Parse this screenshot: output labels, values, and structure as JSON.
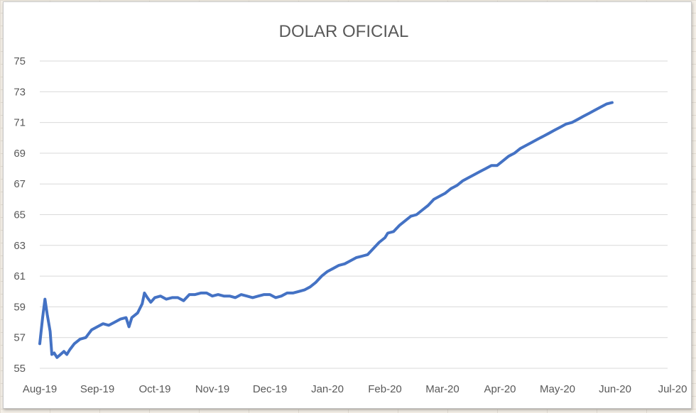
{
  "chart_data": {
    "type": "line",
    "title": "DOLAR OFICIAL",
    "xlabel": "",
    "ylabel": "",
    "ylim": [
      55,
      75
    ],
    "y_ticks": [
      55,
      57,
      59,
      61,
      63,
      65,
      67,
      69,
      71,
      73,
      75
    ],
    "x_tick_labels": [
      "Aug-19",
      "Sep-19",
      "Oct-19",
      "Nov-19",
      "Dec-19",
      "Jan-20",
      "Feb-20",
      "Mar-20",
      "Apr-20",
      "May-20",
      "Jun-20",
      "Jul-20"
    ],
    "grid": true,
    "legend": "none",
    "series": [
      {
        "color": "#4472c4",
        "points": [
          [
            0.0,
            56.6
          ],
          [
            0.05,
            58.3
          ],
          [
            0.09,
            59.5
          ],
          [
            0.13,
            58.5
          ],
          [
            0.18,
            57.4
          ],
          [
            0.21,
            55.9
          ],
          [
            0.25,
            56.0
          ],
          [
            0.3,
            55.7
          ],
          [
            0.36,
            55.9
          ],
          [
            0.42,
            56.1
          ],
          [
            0.47,
            55.9
          ],
          [
            0.52,
            56.2
          ],
          [
            0.6,
            56.6
          ],
          [
            0.7,
            56.9
          ],
          [
            0.8,
            57.0
          ],
          [
            0.9,
            57.5
          ],
          [
            1.0,
            57.7
          ],
          [
            1.1,
            57.9
          ],
          [
            1.2,
            57.8
          ],
          [
            1.3,
            58.0
          ],
          [
            1.4,
            58.2
          ],
          [
            1.5,
            58.3
          ],
          [
            1.55,
            57.7
          ],
          [
            1.6,
            58.3
          ],
          [
            1.7,
            58.6
          ],
          [
            1.78,
            59.2
          ],
          [
            1.82,
            59.9
          ],
          [
            1.87,
            59.6
          ],
          [
            1.93,
            59.3
          ],
          [
            2.0,
            59.6
          ],
          [
            2.1,
            59.7
          ],
          [
            2.2,
            59.5
          ],
          [
            2.3,
            59.6
          ],
          [
            2.4,
            59.6
          ],
          [
            2.5,
            59.4
          ],
          [
            2.6,
            59.8
          ],
          [
            2.7,
            59.8
          ],
          [
            2.8,
            59.9
          ],
          [
            2.9,
            59.9
          ],
          [
            3.0,
            59.7
          ],
          [
            3.1,
            59.8
          ],
          [
            3.2,
            59.7
          ],
          [
            3.3,
            59.7
          ],
          [
            3.4,
            59.6
          ],
          [
            3.5,
            59.8
          ],
          [
            3.6,
            59.7
          ],
          [
            3.7,
            59.6
          ],
          [
            3.8,
            59.7
          ],
          [
            3.9,
            59.8
          ],
          [
            4.0,
            59.8
          ],
          [
            4.1,
            59.6
          ],
          [
            4.2,
            59.7
          ],
          [
            4.3,
            59.9
          ],
          [
            4.4,
            59.9
          ],
          [
            4.5,
            60.0
          ],
          [
            4.6,
            60.1
          ],
          [
            4.7,
            60.3
          ],
          [
            4.8,
            60.6
          ],
          [
            4.9,
            61.0
          ],
          [
            5.0,
            61.3
          ],
          [
            5.1,
            61.5
          ],
          [
            5.2,
            61.7
          ],
          [
            5.3,
            61.8
          ],
          [
            5.4,
            62.0
          ],
          [
            5.5,
            62.2
          ],
          [
            5.6,
            62.3
          ],
          [
            5.7,
            62.4
          ],
          [
            5.8,
            62.8
          ],
          [
            5.9,
            63.2
          ],
          [
            6.0,
            63.5
          ],
          [
            6.05,
            63.8
          ],
          [
            6.15,
            63.9
          ],
          [
            6.25,
            64.3
          ],
          [
            6.35,
            64.6
          ],
          [
            6.45,
            64.9
          ],
          [
            6.55,
            65.0
          ],
          [
            6.65,
            65.3
          ],
          [
            6.75,
            65.6
          ],
          [
            6.85,
            66.0
          ],
          [
            6.95,
            66.2
          ],
          [
            7.05,
            66.4
          ],
          [
            7.15,
            66.7
          ],
          [
            7.25,
            66.9
          ],
          [
            7.35,
            67.2
          ],
          [
            7.45,
            67.4
          ],
          [
            7.55,
            67.6
          ],
          [
            7.65,
            67.8
          ],
          [
            7.75,
            68.0
          ],
          [
            7.85,
            68.2
          ],
          [
            7.95,
            68.2
          ],
          [
            8.05,
            68.5
          ],
          [
            8.15,
            68.8
          ],
          [
            8.25,
            69.0
          ],
          [
            8.35,
            69.3
          ],
          [
            8.45,
            69.5
          ],
          [
            8.55,
            69.7
          ],
          [
            8.65,
            69.9
          ],
          [
            8.75,
            70.1
          ],
          [
            8.85,
            70.3
          ],
          [
            8.95,
            70.5
          ],
          [
            9.05,
            70.7
          ],
          [
            9.15,
            70.9
          ],
          [
            9.25,
            71.0
          ],
          [
            9.35,
            71.2
          ],
          [
            9.45,
            71.4
          ],
          [
            9.55,
            71.6
          ],
          [
            9.65,
            71.8
          ],
          [
            9.75,
            72.0
          ],
          [
            9.85,
            72.2
          ],
          [
            9.95,
            72.3
          ]
        ]
      }
    ]
  }
}
